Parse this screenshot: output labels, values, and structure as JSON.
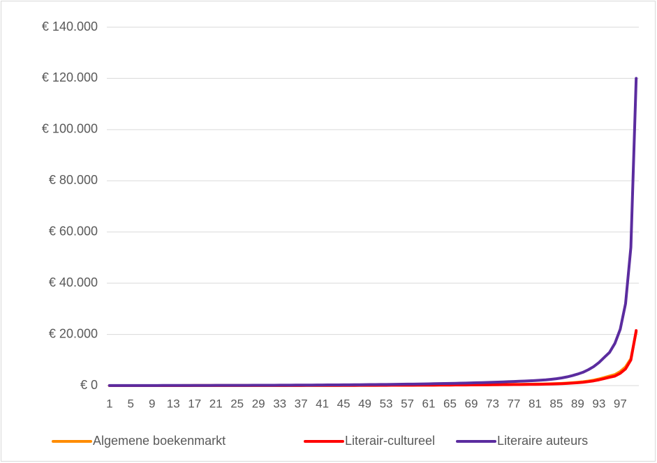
{
  "chart_data": {
    "type": "line",
    "categories": [
      1,
      null,
      null,
      null,
      5,
      null,
      null,
      null,
      9,
      null,
      null,
      null,
      13,
      null,
      null,
      null,
      17,
      null,
      null,
      null,
      21,
      null,
      null,
      null,
      25,
      null,
      null,
      null,
      29,
      null,
      null,
      null,
      33,
      null,
      null,
      null,
      37,
      null,
      null,
      null,
      41,
      null,
      null,
      null,
      45,
      null,
      null,
      null,
      49,
      null,
      null,
      null,
      53,
      null,
      null,
      null,
      57,
      null,
      null,
      null,
      61,
      null,
      null,
      null,
      65,
      null,
      null,
      null,
      69,
      null,
      null,
      null,
      73,
      null,
      null,
      null,
      77,
      null,
      null,
      null,
      81,
      null,
      null,
      null,
      85,
      null,
      null,
      null,
      89,
      null,
      null,
      null,
      93,
      null,
      null,
      null,
      97,
      null,
      null,
      null
    ],
    "series": [
      {
        "name": "Algemene boekenmarkt",
        "color": "#ff8c00",
        "values": [
          9,
          9,
          9,
          10,
          10,
          12,
          12,
          13,
          14,
          14,
          15,
          16,
          16,
          17,
          18,
          20,
          21,
          21,
          22,
          24,
          25,
          26,
          28,
          29,
          31,
          32,
          35,
          36,
          38,
          40,
          41,
          44,
          46,
          49,
          52,
          54,
          58,
          61,
          63,
          67,
          70,
          75,
          78,
          83,
          87,
          92,
          97,
          101,
          107,
          113,
          118,
          125,
          132,
          139,
          146,
          154,
          162,
          171,
          181,
          190,
          200,
          210,
          222,
          233,
          246,
          260,
          274,
          288,
          304,
          320,
          337,
          354,
          374,
          393,
          414,
          437,
          460,
          484,
          511,
          537,
          567,
          604,
          647,
          705,
          776,
          863,
          978,
          1121,
          1294,
          1495,
          1783,
          2128,
          2588,
          3163,
          3738,
          4300,
          5500,
          7300,
          10500,
          21000
        ]
      },
      {
        "name": "Literair-cultureel",
        "color": "#ff0000",
        "values": [
          8,
          8,
          8,
          9,
          9,
          10,
          10,
          11,
          12,
          12,
          13,
          14,
          14,
          15,
          16,
          17,
          18,
          18,
          19,
          21,
          22,
          23,
          24,
          25,
          27,
          28,
          30,
          31,
          33,
          35,
          36,
          38,
          40,
          43,
          45,
          47,
          50,
          53,
          55,
          58,
          61,
          65,
          68,
          72,
          76,
          80,
          84,
          88,
          93,
          98,
          103,
          109,
          115,
          121,
          127,
          134,
          141,
          149,
          157,
          165,
          174,
          183,
          193,
          203,
          214,
          226,
          238,
          250,
          264,
          278,
          293,
          308,
          325,
          342,
          360,
          380,
          400,
          421,
          444,
          467,
          493,
          525,
          563,
          613,
          675,
          750,
          850,
          975,
          1125,
          1300,
          1550,
          1850,
          2250,
          2750,
          3250,
          3700,
          4800,
          6500,
          10000,
          21500
        ]
      },
      {
        "name": "Literaire auteurs",
        "color": "#5b2c9f",
        "values": [
          30,
          32,
          33,
          35,
          37,
          39,
          41,
          43,
          46,
          48,
          51,
          54,
          56,
          60,
          63,
          66,
          70,
          73,
          77,
          82,
          86,
          91,
          96,
          101,
          106,
          112,
          118,
          124,
          131,
          138,
          145,
          153,
          161,
          170,
          179,
          189,
          199,
          210,
          221,
          233,
          245,
          258,
          272,
          287,
          302,
          318,
          335,
          353,
          372,
          392,
          413,
          435,
          458,
          483,
          509,
          536,
          565,
          595,
          627,
          660,
          696,
          733,
          772,
          813,
          857,
          902,
          951,
          1001,
          1055,
          1111,
          1170,
          1233,
          1299,
          1368,
          1441,
          1518,
          1599,
          1685,
          1775,
          1869,
          1970,
          2100,
          2250,
          2450,
          2700,
          3000,
          3400,
          3900,
          4500,
          5200,
          6200,
          7400,
          9000,
          11000,
          13000,
          16500,
          22000,
          32000,
          54000,
          120000
        ]
      }
    ],
    "ylim": [
      0,
      140000
    ],
    "yticks": [
      {
        "value": 0,
        "label": "€ 0"
      },
      {
        "value": 20000,
        "label": "€ 20.000"
      },
      {
        "value": 40000,
        "label": "€ 40.000"
      },
      {
        "value": 60000,
        "label": "€ 60.000"
      },
      {
        "value": 80000,
        "label": "€ 80.000"
      },
      {
        "value": 100000,
        "label": "€ 100.000"
      },
      {
        "value": 120000,
        "label": "€ 120.000"
      },
      {
        "value": 140000,
        "label": "€ 140.000"
      }
    ],
    "grid": true,
    "legend": "bottom"
  }
}
